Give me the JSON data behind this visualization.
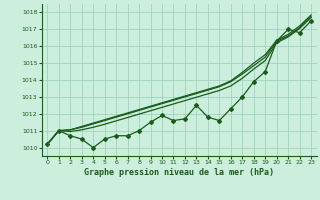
{
  "title": "Graphe pression niveau de la mer (hPa)",
  "xlabel_ticks": [
    0,
    1,
    2,
    3,
    4,
    5,
    6,
    7,
    8,
    9,
    10,
    11,
    12,
    13,
    14,
    15,
    16,
    17,
    18,
    19,
    20,
    21,
    22,
    23
  ],
  "ylim": [
    1009.5,
    1018.5
  ],
  "yticks": [
    1010,
    1011,
    1012,
    1013,
    1014,
    1015,
    1016,
    1017,
    1018
  ],
  "bg_color": "#cceedd",
  "grid_color": "#99ccbb",
  "line_color": "#1a5c1a",
  "data_main": [
    1010.2,
    1011.0,
    1010.7,
    1010.5,
    1010.0,
    1010.5,
    1010.7,
    1010.7,
    1011.0,
    1011.5,
    1011.9,
    1011.6,
    1011.7,
    1012.5,
    1011.8,
    1011.6,
    1012.3,
    1013.0,
    1013.9,
    1014.5,
    1016.3,
    1017.0,
    1016.8,
    1017.5
  ],
  "data_smooth1": [
    1010.2,
    1011.0,
    1011.05,
    1011.2,
    1011.4,
    1011.6,
    1011.8,
    1012.0,
    1012.2,
    1012.4,
    1012.6,
    1012.8,
    1013.0,
    1013.2,
    1013.4,
    1013.6,
    1013.9,
    1014.35,
    1014.85,
    1015.35,
    1016.3,
    1016.6,
    1017.1,
    1017.75
  ],
  "data_smooth2": [
    1010.2,
    1011.0,
    1011.05,
    1011.25,
    1011.45,
    1011.65,
    1011.85,
    1012.05,
    1012.25,
    1012.45,
    1012.65,
    1012.85,
    1013.05,
    1013.25,
    1013.45,
    1013.65,
    1013.95,
    1014.45,
    1015.0,
    1015.5,
    1016.35,
    1016.7,
    1017.2,
    1017.85
  ],
  "data_smooth3": [
    1010.2,
    1011.0,
    1010.95,
    1011.05,
    1011.2,
    1011.38,
    1011.58,
    1011.78,
    1011.98,
    1012.18,
    1012.38,
    1012.58,
    1012.78,
    1012.98,
    1013.18,
    1013.38,
    1013.65,
    1014.1,
    1014.65,
    1015.15,
    1016.2,
    1016.55,
    1017.05,
    1017.7
  ],
  "figsize": [
    3.2,
    2.0
  ],
  "dpi": 100
}
